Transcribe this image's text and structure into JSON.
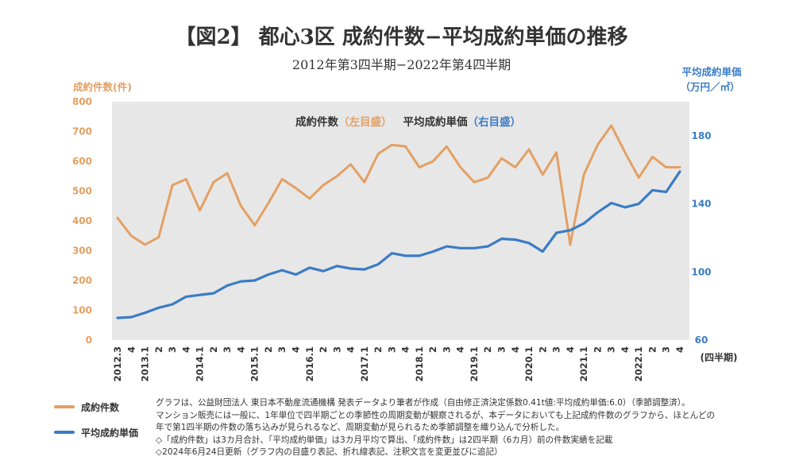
{
  "colors": {
    "count": "#E3A064",
    "price": "#3B7CC4",
    "plot_bg": "#E7E7E7",
    "axis_left": "#E3A064",
    "axis_right": "#3B7CC4"
  },
  "header": {
    "title": "【図2】 都心3区 成約件数−平均成約単価の推移",
    "subtitle": "2012年第3四半期−2022年第4四半期"
  },
  "chart_data": {
    "type": "line",
    "title": "【図2】 都心3区 成約件数−平均成約単価の推移",
    "subtitle": "2012年第3四半期−2022年第4四半期",
    "ylabel": "成約件数(件)",
    "ylabel_right": "平均成約単価",
    "ylabel_right_unit": "（万円／㎡）",
    "xlabel": "(四半期)",
    "ylim": [
      0,
      800
    ],
    "ylim_right": [
      60,
      200
    ],
    "yticks": [
      "0",
      "100",
      "200",
      "300",
      "400",
      "500",
      "600",
      "700",
      "800"
    ],
    "yticks_right": [
      "60",
      "100",
      "140",
      "180"
    ],
    "x": [
      "2012.3",
      "4",
      "2013.1",
      "2",
      "3",
      "4",
      "2014.1",
      "2",
      "3",
      "4",
      "2015.1",
      "2",
      "3",
      "4",
      "2016.1",
      "2",
      "3",
      "4",
      "2017.1",
      "2",
      "3",
      "4",
      "2018.1",
      "2",
      "3",
      "4",
      "2019.1",
      "2",
      "3",
      "4",
      "2020.1",
      "2",
      "3",
      "4",
      "2021.1",
      "2",
      "3",
      "4",
      "2022.1",
      "2",
      "3",
      "4"
    ],
    "legend_inside": {
      "count": "成約件数",
      "count_side": "（左目盛）",
      "price": "平均成約単価",
      "price_side": "（右目盛）"
    },
    "series": [
      {
        "name": "成約件数",
        "axis": "left",
        "values": [
          410,
          350,
          320,
          345,
          520,
          540,
          435,
          530,
          560,
          450,
          385,
          460,
          540,
          510,
          475,
          520,
          550,
          590,
          530,
          625,
          655,
          650,
          580,
          600,
          650,
          580,
          530,
          545,
          610,
          580,
          640,
          555,
          630,
          320,
          555,
          655,
          720,
          630,
          545,
          615,
          580,
          580
        ]
      },
      {
        "name": "平均成約単価",
        "axis": "right",
        "values": [
          73,
          73.5,
          76,
          79,
          81,
          85.5,
          86.5,
          87.5,
          92,
          94.5,
          95,
          98.5,
          101,
          98.5,
          102.5,
          100.5,
          103.5,
          102,
          101.5,
          104.5,
          111,
          109.5,
          109.5,
          112,
          115,
          114,
          114,
          115,
          119.5,
          119,
          117,
          112,
          123,
          124.5,
          128.5,
          135,
          140.5,
          138,
          140,
          148,
          147,
          159
        ]
      }
    ],
    "grid": false,
    "legend_position": "bottom-left"
  },
  "legend": {
    "count": "成約件数",
    "price": "平均成約単価"
  },
  "notes": [
    "グラフは、公益財団法人 東日本不動産流通機構 発表データより筆者が作成（自由修正済決定係数0.41t値:平均成約単価:6.0）（季節調整済）。",
    "マンション販売には一般に、1年単位で四半期ごとの季節性の周期変動が観察されるが、本データにおいても上記成約件数のグラフから、ほとんどの",
    "年で第1四半期の件数の落ち込みが見られるなど、周期変動が見られるため季節調整を織り込んで分析した。",
    "◇「成約件数」は3カ月合計、「平均成約単価」は3カ月平均で算出、「成約件数」は2四半期（6カ月）前の件数実績を記載",
    "◇2024年6月24日更新（グラフ内の目盛り表記、折れ線表記、注釈文言を変更並びに追記）"
  ]
}
